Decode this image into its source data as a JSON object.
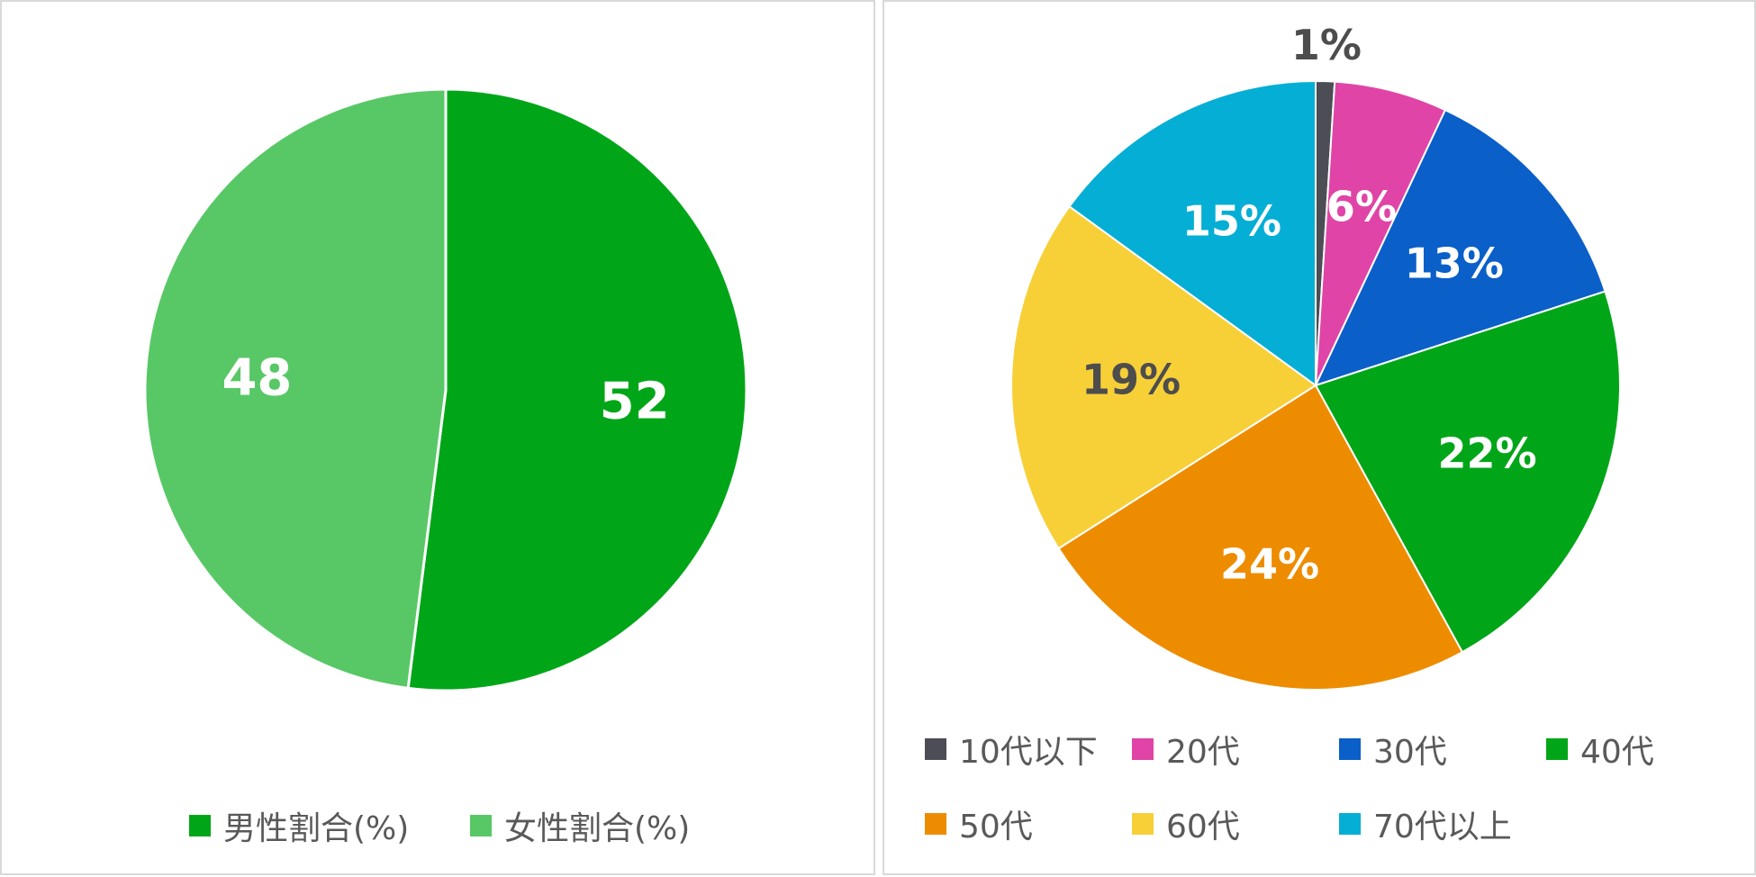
{
  "chart_data": [
    {
      "type": "pie",
      "title": "",
      "categories": [
        "男性割合(%)",
        "女性割合(%)"
      ],
      "values": [
        52,
        48
      ],
      "data_labels": [
        "52",
        "48"
      ],
      "colors": [
        "#00a618",
        "#58c866"
      ],
      "label_color": "#ffffff",
      "start_angle_deg": 0,
      "direction": "clockwise",
      "legend": "bottom"
    },
    {
      "type": "pie",
      "title": "",
      "categories": [
        "10代以下",
        "20代",
        "30代",
        "40代",
        "50代",
        "60代",
        "70代以上"
      ],
      "values": [
        1,
        6,
        13,
        22,
        24,
        19,
        15
      ],
      "data_labels": [
        "1%",
        "6%",
        "13%",
        "22%",
        "24%",
        "19%",
        "15%"
      ],
      "colors": [
        "#4d4d55",
        "#e044a6",
        "#0a5fc8",
        "#00a618",
        "#ee8c00",
        "#f7d038",
        "#05aed4"
      ],
      "label_colors": [
        "#4d4d4d",
        "#ffffff",
        "#ffffff",
        "#ffffff",
        "#ffffff",
        "#4d4d4d",
        "#ffffff"
      ],
      "start_angle_deg": 0,
      "direction": "clockwise",
      "legend": "bottom"
    }
  ]
}
